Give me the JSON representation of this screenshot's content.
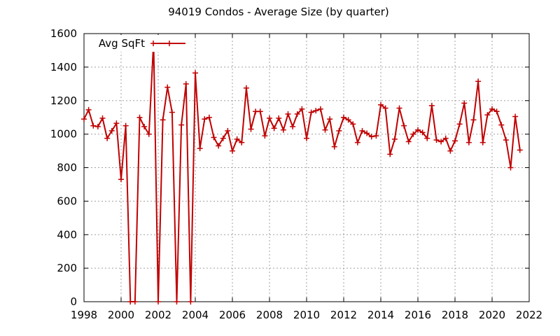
{
  "chart_data": {
    "type": "line",
    "title": "94019 Condos - Average Size (by quarter)",
    "xlabel": "",
    "ylabel": "",
    "xlim": [
      1998,
      2022
    ],
    "ylim": [
      0,
      1600
    ],
    "xticks": [
      1998,
      2000,
      2002,
      2004,
      2006,
      2008,
      2010,
      2012,
      2014,
      2016,
      2018,
      2020,
      2022
    ],
    "yticks": [
      0,
      200,
      400,
      600,
      800,
      1000,
      1200,
      1400,
      1600
    ],
    "grid": true,
    "legend_position": "top-left",
    "series": [
      {
        "name": "Avg SqFt",
        "color": "#c00000",
        "x": [
          1998.0,
          1998.25,
          1998.5,
          1998.75,
          1999.0,
          1999.25,
          1999.5,
          1999.75,
          2000.0,
          2000.25,
          2000.5,
          2000.75,
          2001.0,
          2001.25,
          2001.5,
          2001.75,
          2002.0,
          2002.25,
          2002.5,
          2002.75,
          2003.0,
          2003.25,
          2003.5,
          2003.75,
          2004.0,
          2004.25,
          2004.5,
          2004.75,
          2005.0,
          2005.25,
          2005.5,
          2005.75,
          2006.0,
          2006.25,
          2006.5,
          2006.75,
          2007.0,
          2007.25,
          2007.5,
          2007.75,
          2008.0,
          2008.25,
          2008.5,
          2008.75,
          2009.0,
          2009.25,
          2009.5,
          2009.75,
          2010.0,
          2010.25,
          2010.5,
          2010.75,
          2011.0,
          2011.25,
          2011.5,
          2011.75,
          2012.0,
          2012.25,
          2012.5,
          2012.75,
          2013.0,
          2013.25,
          2013.5,
          2013.75,
          2014.0,
          2014.25,
          2014.5,
          2014.75,
          2015.0,
          2015.25,
          2015.5,
          2015.75,
          2016.0,
          2016.25,
          2016.5,
          2016.75,
          2017.0,
          2017.25,
          2017.5,
          2017.75,
          2018.0,
          2018.25,
          2018.5,
          2018.75,
          2019.0,
          2019.25,
          2019.5,
          2019.75,
          2020.0,
          2020.25,
          2020.5,
          2020.75,
          2021.0,
          2021.25,
          2021.5
        ],
        "values": [
          1090,
          1145,
          1050,
          1045,
          1095,
          975,
          1020,
          1065,
          730,
          1050,
          0,
          0,
          1100,
          1045,
          1000,
          1550,
          0,
          1085,
          1280,
          1130,
          0,
          1055,
          1300,
          0,
          1365,
          915,
          1090,
          1100,
          980,
          930,
          975,
          1020,
          900,
          970,
          950,
          1275,
          1030,
          1135,
          1135,
          990,
          1095,
          1035,
          1095,
          1025,
          1120,
          1045,
          1120,
          1150,
          975,
          1130,
          1140,
          1150,
          1025,
          1090,
          925,
          1020,
          1100,
          1085,
          1060,
          950,
          1020,
          1005,
          985,
          990,
          1175,
          1155,
          880,
          970,
          1155,
          1050,
          955,
          1000,
          1025,
          1010,
          975,
          1170,
          965,
          955,
          975,
          900,
          960,
          1060,
          1185,
          950,
          1085,
          1315,
          950,
          1115,
          1150,
          1135,
          1055,
          965,
          800,
          1105,
          905
        ]
      }
    ]
  }
}
